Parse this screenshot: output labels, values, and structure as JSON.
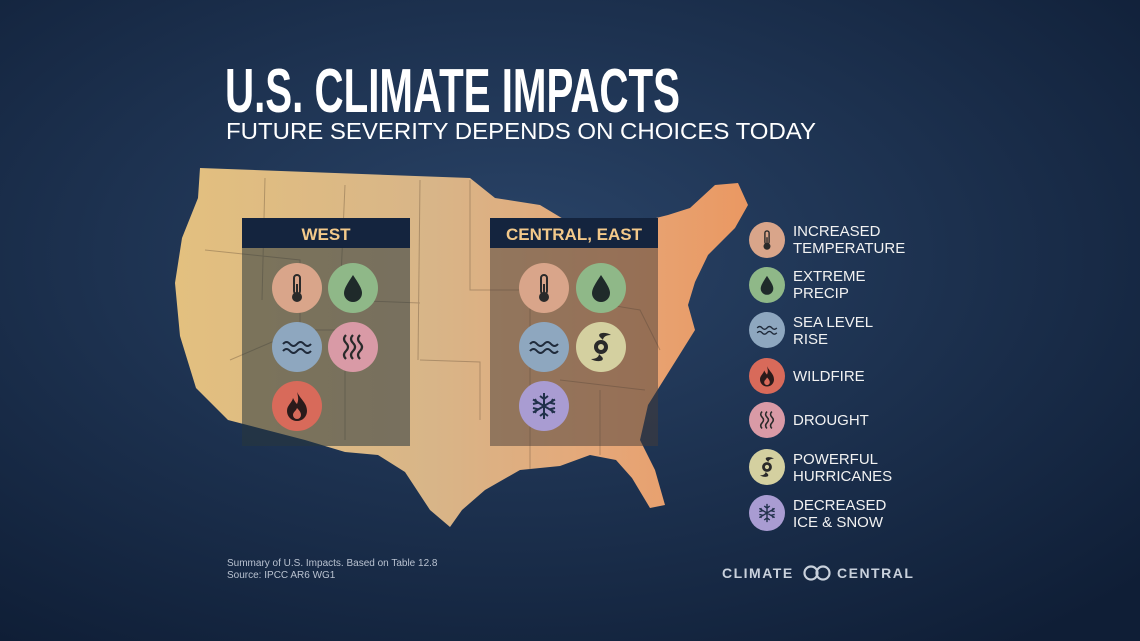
{
  "header": {
    "title": "U.S. CLIMATE IMPACTS",
    "subtitle": "FUTURE SEVERITY DEPENDS ON CHOICES TODAY"
  },
  "regions": [
    {
      "name": "WEST"
    },
    {
      "name": "CENTRAL, EAST"
    }
  ],
  "legend": [
    {
      "lines": [
        "INCREASED",
        "TEMPERATURE"
      ]
    },
    {
      "lines": [
        "EXTREME",
        "PRECIP"
      ]
    },
    {
      "lines": [
        "SEA LEVEL",
        "RISE"
      ]
    },
    {
      "lines": [
        "WILDFIRE"
      ]
    },
    {
      "lines": [
        "DROUGHT"
      ]
    },
    {
      "lines": [
        "POWERFUL",
        "HURRICANES"
      ]
    },
    {
      "lines": [
        "DECREASED",
        "ICE & SNOW"
      ]
    }
  ],
  "footer": {
    "source": [
      "Summary of U.S. Impacts. Based on Table 12.8",
      "Source: IPCC AR6 WG1"
    ],
    "logo": [
      "CLIMATE",
      "CENTRAL"
    ]
  }
}
